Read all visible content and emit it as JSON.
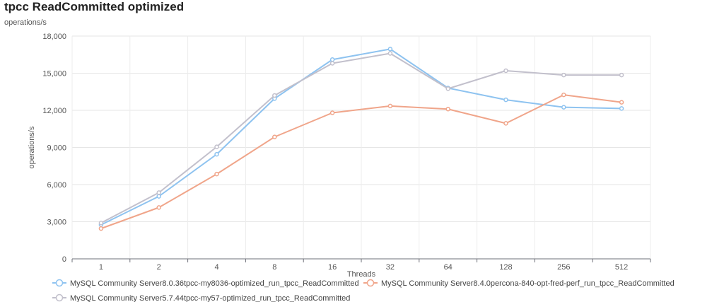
{
  "header": {
    "title": "tpcc ReadCommitted optimized",
    "subtitle": "operations/s"
  },
  "chart_data": {
    "type": "line",
    "title": "tpcc ReadCommitted optimized",
    "subtitle": "operations/s",
    "xlabel": "Threads",
    "ylabel": "operations/s",
    "categories": [
      "1",
      "2",
      "4",
      "8",
      "16",
      "32",
      "64",
      "128",
      "256",
      "512"
    ],
    "ylim": [
      0,
      18000
    ],
    "yticks": [
      0,
      3000,
      6000,
      9000,
      12000,
      15000,
      18000
    ],
    "ytick_labels": [
      "0",
      "3,000",
      "6,000",
      "9,000",
      "12,000",
      "15,000",
      "18,000"
    ],
    "grid": true,
    "legend_position": "bottom",
    "series": [
      {
        "name": "MySQL Community Server8.0.36tpcc-my8036-optimized_run_tpcc_ReadCommitted",
        "color": "#8ec3f0",
        "values": [
          2750,
          5050,
          8450,
          12950,
          16100,
          16950,
          13800,
          12850,
          12250,
          12150
        ]
      },
      {
        "name": "MySQL Community Server8.4.0percona-840-opt-fred-perf_run_tpcc_ReadCommitted",
        "color": "#f0a58a",
        "values": [
          2450,
          4150,
          6850,
          9850,
          11800,
          12350,
          12100,
          10950,
          13250,
          12650
        ]
      },
      {
        "name": "MySQL Community Server5.7.44tpcc-my57-optimized_run_tpcc_ReadCommitted",
        "color": "#c2c0cc",
        "values": [
          2900,
          5350,
          9050,
          13200,
          15800,
          16600,
          13750,
          15200,
          14850,
          14850
        ]
      }
    ]
  }
}
